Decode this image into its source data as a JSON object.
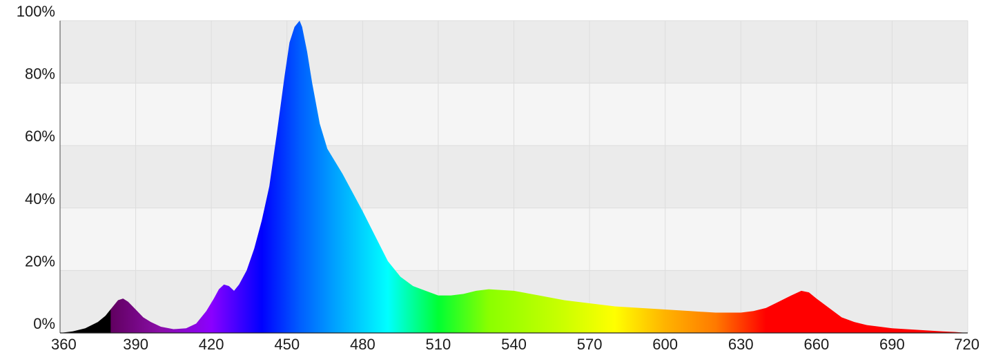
{
  "chart_data": {
    "type": "area",
    "title": "",
    "xlabel": "",
    "ylabel": "",
    "xlim": [
      360,
      720
    ],
    "ylim": [
      0,
      100
    ],
    "x_ticks": [
      360,
      390,
      420,
      450,
      480,
      510,
      540,
      570,
      600,
      630,
      660,
      690,
      720
    ],
    "y_ticks": [
      0,
      20,
      40,
      60,
      80,
      100
    ],
    "x_tick_labels": [
      "360",
      "390",
      "420",
      "450",
      "480",
      "510",
      "540",
      "570",
      "600",
      "630",
      "660",
      "690",
      "720"
    ],
    "y_tick_labels": [
      "0%",
      "20%",
      "40%",
      "60%",
      "80%",
      "100%"
    ],
    "grid": true,
    "fill": "wavelength-color spectrum gradient",
    "x": [
      360,
      365,
      370,
      375,
      378,
      380,
      383,
      385,
      387,
      390,
      393,
      396,
      400,
      405,
      410,
      414,
      418,
      421,
      423,
      425,
      427,
      429,
      431,
      434,
      437,
      440,
      443,
      446,
      449,
      451,
      453,
      455,
      456,
      458,
      460,
      463,
      466,
      469,
      472,
      476,
      480,
      485,
      490,
      495,
      500,
      505,
      510,
      515,
      520,
      525,
      530,
      540,
      550,
      560,
      570,
      580,
      590,
      600,
      610,
      620,
      630,
      635,
      640,
      645,
      650,
      654,
      657,
      660,
      665,
      670,
      675,
      680,
      690,
      700,
      710,
      715,
      720
    ],
    "y": [
      0,
      0.5,
      1.5,
      3.5,
      5.5,
      7.5,
      10.5,
      11,
      10,
      7.5,
      5,
      3.5,
      2,
      1.2,
      1.5,
      3,
      7,
      11,
      14,
      15.5,
      15,
      13.5,
      15.5,
      20,
      27,
      36,
      47,
      64,
      82,
      93,
      98,
      100,
      98,
      90,
      80,
      67,
      59,
      55,
      51,
      45,
      39,
      31,
      23,
      18,
      15,
      13.5,
      12,
      12,
      12.5,
      13.5,
      14,
      13.5,
      12,
      10.5,
      9.5,
      8.5,
      8,
      7.5,
      7,
      6.5,
      6.5,
      7,
      8,
      10,
      12,
      13.5,
      13,
      11,
      8,
      5,
      3.5,
      2.5,
      1.5,
      1,
      0.5,
      0.3,
      0
    ]
  },
  "colors": {
    "plot_band_dark": "#ebebeb",
    "plot_band_light": "#f5f5f5",
    "grid_line": "#dddddd",
    "axis_line": "#222222",
    "text": "#1a1a1a"
  }
}
